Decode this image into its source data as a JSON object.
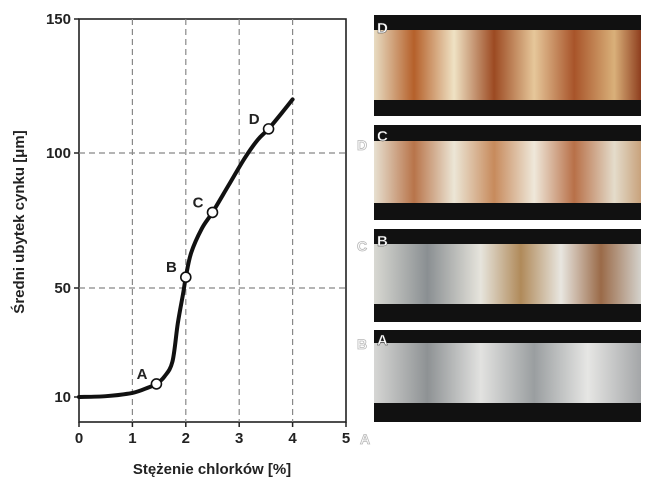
{
  "chart_data": {
    "type": "line",
    "title": "",
    "xlabel": "Stężenie chlorków [%]",
    "ylabel": "Średni ubytek cynku [μm]",
    "xlim": [
      0,
      5
    ],
    "ylim": [
      0,
      150
    ],
    "x_ticks": [
      "0",
      "1",
      "2",
      "3",
      "4",
      "5"
    ],
    "y_ticks": [
      "10",
      "50",
      "100",
      "150"
    ],
    "y_tick_values": [
      10,
      50,
      100,
      150
    ],
    "grid": true,
    "series": [
      {
        "x": [
          0,
          0.5,
          1.0,
          1.3,
          1.45,
          1.6,
          1.75,
          1.85,
          1.95,
          2.0,
          2.1,
          2.3,
          2.5,
          2.8,
          3.1,
          3.35,
          3.55,
          3.8,
          4.0
        ],
        "values": [
          10,
          10.3,
          11.5,
          13.5,
          14.8,
          17.5,
          23,
          37,
          48,
          54,
          63,
          72,
          78,
          88,
          98,
          105,
          109,
          115,
          120
        ]
      }
    ],
    "annotations": [
      {
        "label": "A",
        "x": 1.45,
        "y": 14.8
      },
      {
        "label": "B",
        "x": 2.0,
        "y": 54
      },
      {
        "label": "C",
        "x": 2.5,
        "y": 78
      },
      {
        "label": "D",
        "x": 3.55,
        "y": 109
      }
    ]
  },
  "side_labels": {
    "photo_labels": [
      "D",
      "C",
      "B",
      "A"
    ],
    "ghost_labels": [
      "D",
      "C",
      "B",
      "A"
    ]
  },
  "colors": {
    "line": "#111111",
    "grid": "#888888",
    "photo_border": "#111111"
  }
}
